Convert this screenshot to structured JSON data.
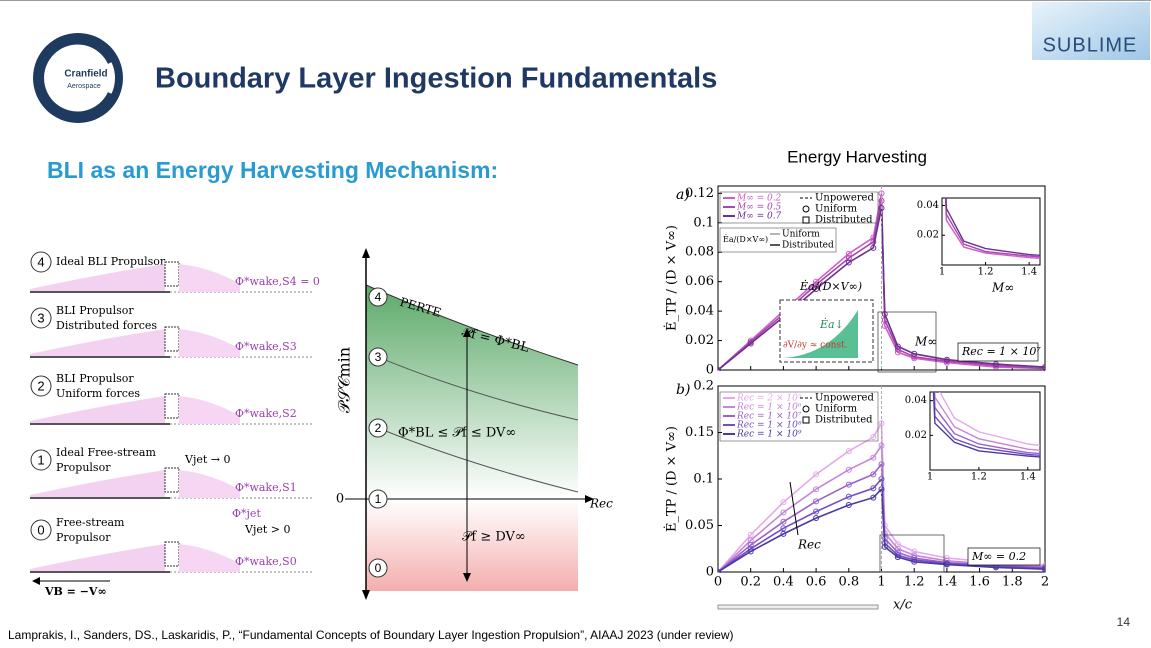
{
  "header": {
    "title": "Boundary Layer Ingestion Fundamentals",
    "logo": [
      "Cranfield",
      "Aerospace"
    ],
    "brand": "SUBLIME"
  },
  "subtitle": "BLI as an Energy Harvesting Mechanism:",
  "left_diagram": {
    "rows": [
      {
        "number": "4",
        "label": [
          "Ideal BLI Propulsor"
        ],
        "wake": "Φ*wake,S4 = 0"
      },
      {
        "number": "3",
        "label": [
          "BLI Propulsor",
          "Distributed forces"
        ],
        "wake": "Φ*wake,S3"
      },
      {
        "number": "2",
        "label": [
          "BLI Propulsor",
          "Uniform forces"
        ],
        "wake": "Φ*wake,S2"
      },
      {
        "number": "1",
        "label": [
          "Ideal Free-stream",
          "Propulsor"
        ],
        "wake": "Φ*wake,S1",
        "jet": "Vjet → 0"
      },
      {
        "number": "0",
        "label": [
          "Free-stream",
          "Propulsor"
        ],
        "wake": "Φ*wake,S0",
        "jet": "Vjet > 0",
        "jet_wake": "Φ*jet"
      }
    ],
    "velocity": "VB = −V∞"
  },
  "psc_chart": {
    "y_label": "𝒫𝒮𝒞min",
    "levels": [
      "4",
      "3",
      "2",
      "1",
      "0"
    ],
    "zero": "0",
    "x_label": "Rec",
    "per_label": "PERTE",
    "upper": "𝒫f = Φ*BL",
    "middle": "Φ*BL ≤ 𝒫f ≤ DV∞",
    "lower": "𝒫f ≥ DV∞"
  },
  "energy": {
    "heading": "Energy Harvesting",
    "x_label": "x/c",
    "y_label": "Ė_TP / (D × V∞)",
    "x": [
      0,
      0.2,
      0.4,
      0.6,
      0.8,
      0.95,
      1,
      1.02,
      1.1,
      1.2,
      1.4,
      1.7,
      2
    ],
    "xlim": [
      0,
      2
    ],
    "xticks": [
      0,
      0.2,
      0.4,
      0.6,
      0.8,
      1,
      1.2,
      1.4,
      1.6,
      1.8,
      2
    ],
    "plot_a": {
      "tag": "a)",
      "ylim": [
        0,
        0.125
      ],
      "yticks": [
        0,
        0.02,
        0.04,
        0.06,
        0.08,
        0.1,
        0.12
      ],
      "series": [
        {
          "name": "M∞ = 0.2",
          "color": "#d45bc8",
          "values": [
            0,
            0.02,
            0.04,
            0.06,
            0.079,
            0.09,
            0.12,
            0.03,
            0.012,
            0.008,
            0.005,
            0.002,
            0.001
          ]
        },
        {
          "name": "M∞ = 0.5",
          "color": "#a548b0",
          "values": [
            0,
            0.019,
            0.038,
            0.058,
            0.076,
            0.087,
            0.115,
            0.034,
            0.014,
            0.009,
            0.006,
            0.003,
            0.001
          ]
        },
        {
          "name": "M∞ = 0.7",
          "color": "#6b2f8f",
          "values": [
            0,
            0.018,
            0.036,
            0.055,
            0.073,
            0.083,
            0.11,
            0.038,
            0.016,
            0.011,
            0.007,
            0.004,
            0.002
          ]
        }
      ],
      "legend_extra": [
        "Unpowered",
        "Uniform",
        "Distributed"
      ],
      "legend2": {
        "title": "Ėa/(D×V∞)",
        "entries": [
          "Uniform",
          "Distributed"
        ]
      },
      "annotations": {
        "ea": "Ėa/(D×V∞)",
        "mach": "M∞",
        "mach2": "M∞",
        "re": "Rec = 1 × 10⁷",
        "gradient": "∂V/∂y ≈ const.",
        "ea_down": "Ėa↓"
      },
      "inset": {
        "xlim": [
          1,
          1.45
        ],
        "ylim": [
          0,
          0.045
        ],
        "xticks": [
          1,
          1.2,
          1.4
        ],
        "yticks": [
          0.02,
          0.04
        ]
      }
    },
    "plot_b": {
      "tag": "b)",
      "ylim": [
        0,
        0.2
      ],
      "yticks": [
        0,
        0.05,
        0.1,
        0.15,
        0.2
      ],
      "series": [
        {
          "name": "Rec = 2 × 10⁵",
          "color": "#e3a9ea",
          "values": [
            0,
            0.04,
            0.075,
            0.105,
            0.13,
            0.145,
            0.16,
            0.05,
            0.03,
            0.022,
            0.015,
            0.01,
            0.007
          ]
        },
        {
          "name": "Rec = 1 × 10⁶",
          "color": "#c784dc",
          "values": [
            0,
            0.034,
            0.064,
            0.089,
            0.11,
            0.123,
            0.136,
            0.042,
            0.025,
            0.018,
            0.012,
            0.008,
            0.006
          ]
        },
        {
          "name": "Rec = 1 × 10⁷",
          "color": "#9d62c9",
          "values": [
            0,
            0.029,
            0.054,
            0.076,
            0.094,
            0.105,
            0.116,
            0.036,
            0.021,
            0.015,
            0.01,
            0.007,
            0.005
          ]
        },
        {
          "name": "Rec = 1 × 10⁸",
          "color": "#7250c0",
          "values": [
            0,
            0.025,
            0.047,
            0.065,
            0.081,
            0.09,
            0.1,
            0.031,
            0.018,
            0.013,
            0.009,
            0.006,
            0.004
          ]
        },
        {
          "name": "Rec = 1 × 10⁹",
          "color": "#4a3aa8",
          "values": [
            0,
            0.022,
            0.041,
            0.058,
            0.072,
            0.08,
            0.089,
            0.027,
            0.016,
            0.011,
            0.008,
            0.005,
            0.003
          ]
        }
      ],
      "legend_extra": [
        "Unpowered",
        "Uniform",
        "Distributed"
      ],
      "annotations": {
        "re": "Rec",
        "mach": "M∞ = 0.2"
      },
      "inset": {
        "xlim": [
          1,
          1.45
        ],
        "ylim": [
          0,
          0.045
        ],
        "xticks": [
          1,
          1.2,
          1.4
        ],
        "yticks": [
          0.02,
          0.04
        ]
      }
    }
  },
  "footer": {
    "citation": "Lamprakis, I., Sanders, DS., Laskaridis, P., “Fundamental Concepts of Boundary Layer Ingestion Propulsion”, AIAAJ 2023 (under review)",
    "page": "14"
  }
}
